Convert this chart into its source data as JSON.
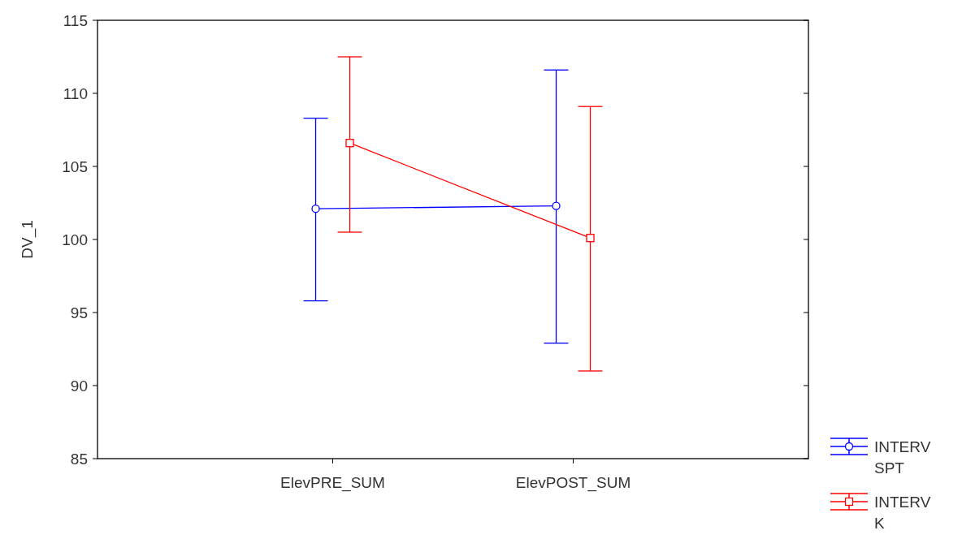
{
  "chart_data": {
    "type": "line",
    "ylabel": "DV_1",
    "categories": [
      "ElevPRE_SUM",
      "ElevPOST_SUM"
    ],
    "ylim": [
      85,
      115
    ],
    "yticks": [
      85,
      90,
      95,
      100,
      105,
      110,
      115
    ],
    "grid": false,
    "legend": "bottom right",
    "line_style": "solid",
    "series": [
      {
        "name": "INTERV SPT",
        "color": "#0000ff",
        "marker": "circle",
        "values": [
          102.1,
          102.3
        ],
        "errors": [
          [
            95.8,
            108.3
          ],
          [
            92.9,
            111.6
          ]
        ]
      },
      {
        "name": "INTERV K",
        "color": "#ff0000",
        "marker": "square",
        "values": [
          106.6,
          100.1
        ],
        "errors": [
          [
            100.5,
            112.5
          ],
          [
            91.0,
            109.1
          ]
        ]
      }
    ]
  }
}
